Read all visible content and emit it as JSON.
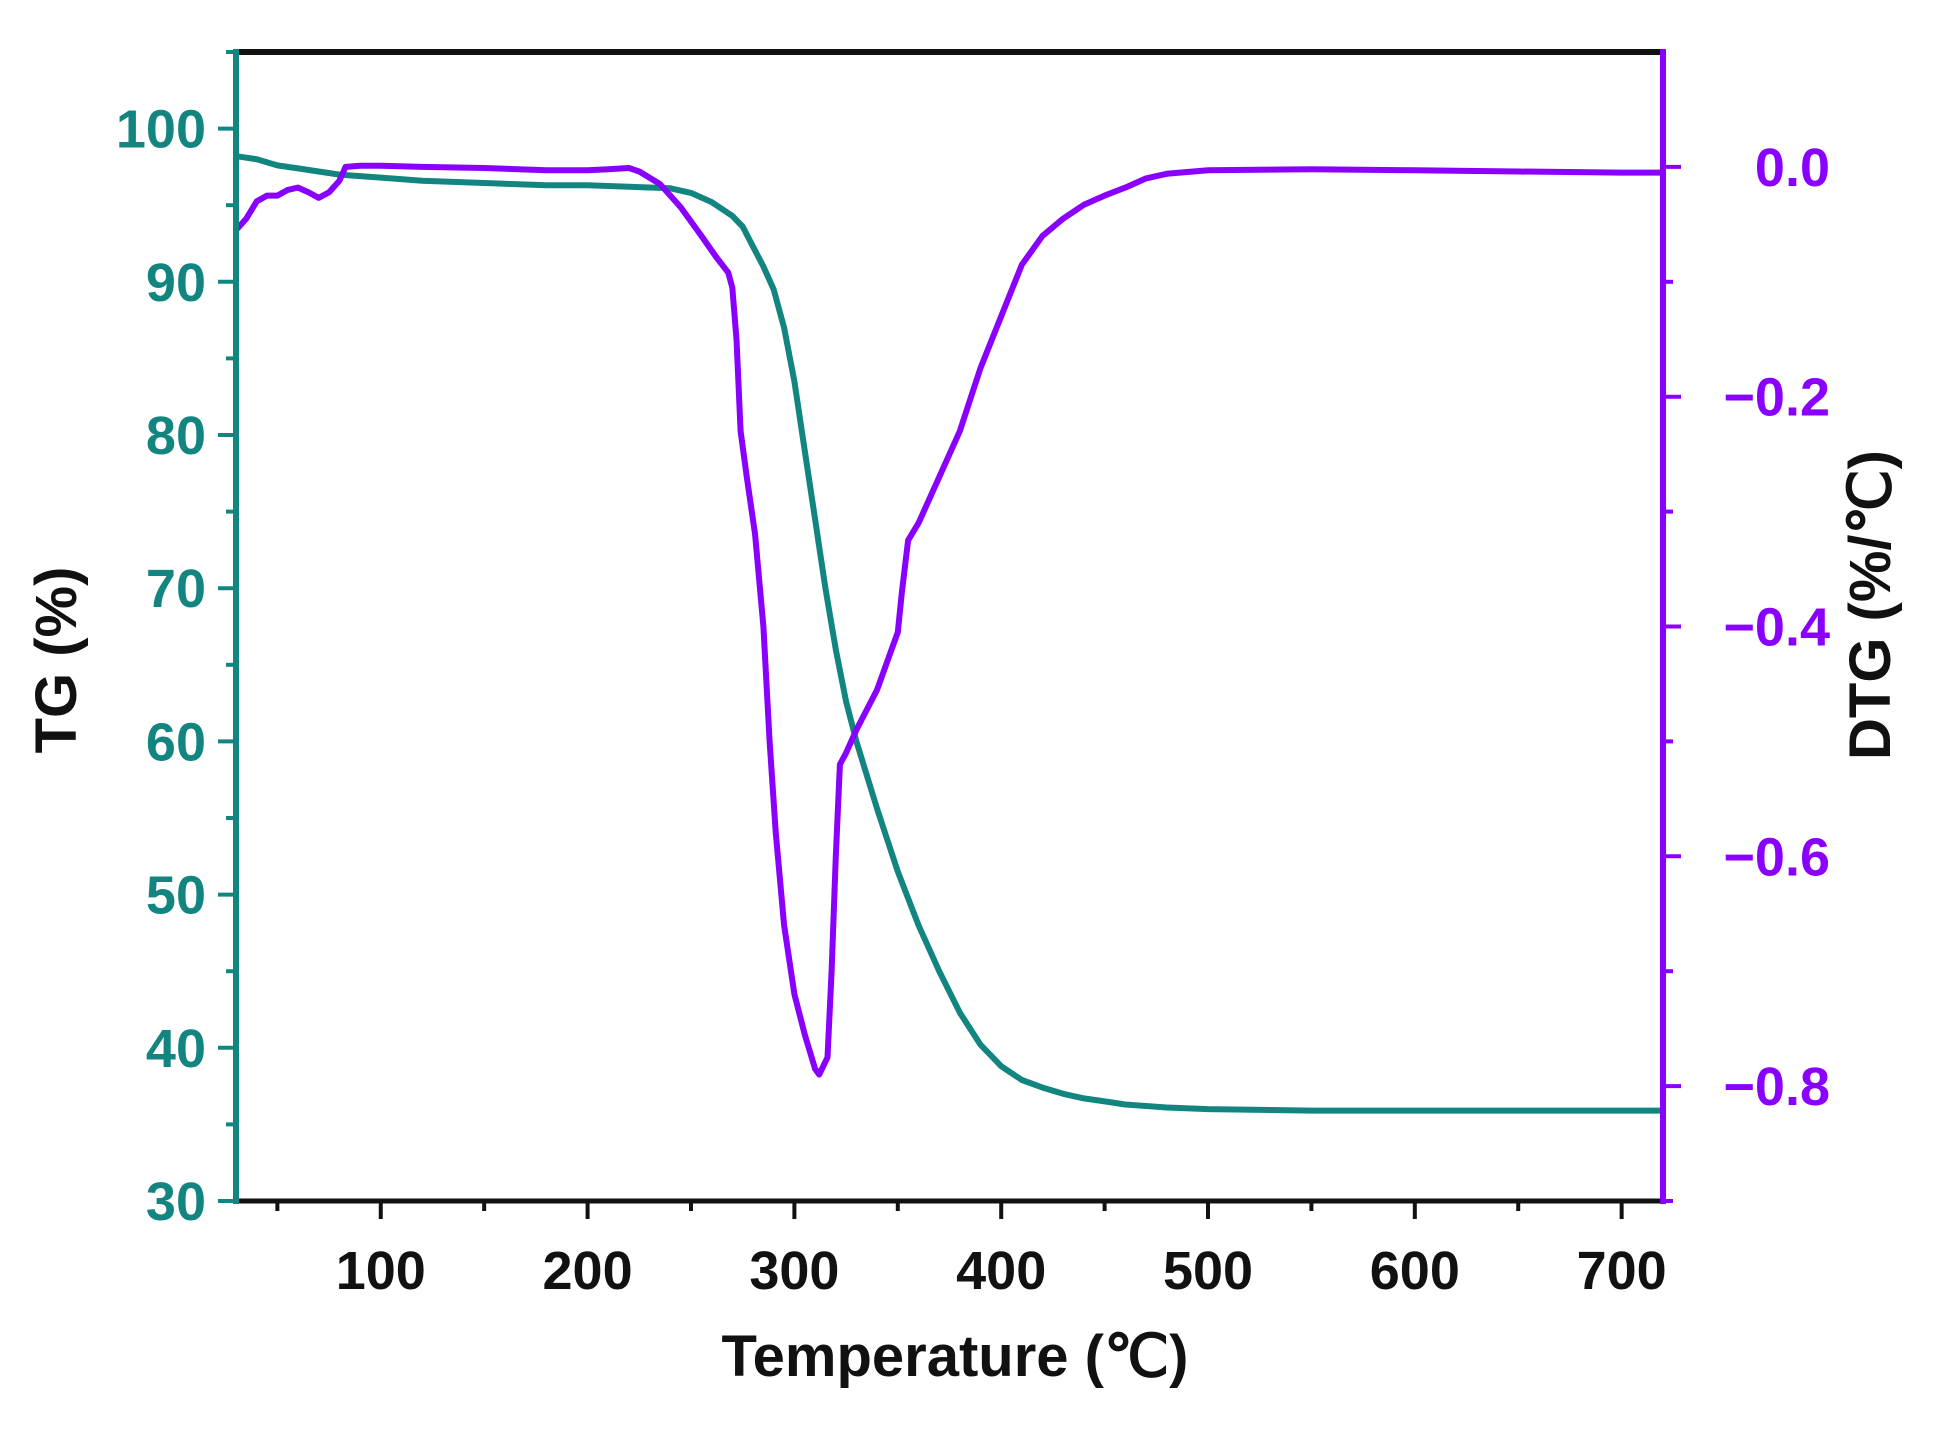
{
  "chart_data": {
    "type": "line",
    "title": "",
    "xlabel": "Temperature (℃)",
    "ylabel_left": "TG (%)",
    "ylabel_right": "DTG (%/℃)",
    "xlim": [
      30,
      720
    ],
    "ylim_left": [
      30,
      105
    ],
    "ylim_right": [
      -0.9,
      0.1
    ],
    "x_ticks": [
      100,
      200,
      300,
      400,
      500,
      600,
      700
    ],
    "x_tick_labels": [
      "100",
      "200",
      "300",
      "400",
      "500",
      "600",
      "700"
    ],
    "y_left_ticks": [
      30,
      40,
      50,
      60,
      70,
      80,
      90,
      100
    ],
    "y_left_tick_labels": [
      "30",
      "40",
      "50",
      "60",
      "70",
      "80",
      "90",
      "100"
    ],
    "y_right_ticks": [
      0.0,
      -0.2,
      -0.4,
      -0.6,
      -0.8
    ],
    "y_right_tick_labels": [
      "0.0",
      "−0.2",
      "−0.4",
      "−0.6",
      "−0.8"
    ],
    "grid": false,
    "colors": {
      "tg": "#138580",
      "dtg": "#8a00ff",
      "frame": "#111111"
    },
    "series": [
      {
        "name": "TG",
        "axis": "left",
        "color": "#138580",
        "points": [
          [
            30,
            98.2
          ],
          [
            40,
            98.0
          ],
          [
            50,
            97.6
          ],
          [
            60,
            97.4
          ],
          [
            70,
            97.2
          ],
          [
            80,
            97.0
          ],
          [
            90,
            96.9
          ],
          [
            100,
            96.8
          ],
          [
            120,
            96.6
          ],
          [
            140,
            96.5
          ],
          [
            160,
            96.4
          ],
          [
            180,
            96.3
          ],
          [
            200,
            96.3
          ],
          [
            220,
            96.2
          ],
          [
            240,
            96.1
          ],
          [
            250,
            95.8
          ],
          [
            260,
            95.2
          ],
          [
            270,
            94.3
          ],
          [
            275,
            93.6
          ],
          [
            280,
            92.3
          ],
          [
            285,
            91.0
          ],
          [
            290,
            89.5
          ],
          [
            295,
            87.0
          ],
          [
            300,
            83.5
          ],
          [
            305,
            79.0
          ],
          [
            310,
            74.5
          ],
          [
            315,
            70.0
          ],
          [
            320,
            66.0
          ],
          [
            325,
            62.6
          ],
          [
            330,
            60.0
          ],
          [
            340,
            55.6
          ],
          [
            350,
            51.5
          ],
          [
            360,
            48.0
          ],
          [
            370,
            45.0
          ],
          [
            380,
            42.3
          ],
          [
            390,
            40.2
          ],
          [
            400,
            38.8
          ],
          [
            410,
            37.9
          ],
          [
            420,
            37.4
          ],
          [
            430,
            37.0
          ],
          [
            440,
            36.7
          ],
          [
            450,
            36.5
          ],
          [
            460,
            36.3
          ],
          [
            480,
            36.1
          ],
          [
            500,
            36.0
          ],
          [
            550,
            35.9
          ],
          [
            600,
            35.9
          ],
          [
            650,
            35.9
          ],
          [
            700,
            35.9
          ],
          [
            720,
            35.9
          ]
        ]
      },
      {
        "name": "DTG",
        "axis": "right",
        "color": "#8a00ff",
        "points": [
          [
            30,
            -0.055
          ],
          [
            35,
            -0.045
          ],
          [
            40,
            -0.03
          ],
          [
            45,
            -0.025
          ],
          [
            50,
            -0.025
          ],
          [
            55,
            -0.02
          ],
          [
            60,
            -0.018
          ],
          [
            65,
            -0.022
          ],
          [
            70,
            -0.027
          ],
          [
            75,
            -0.022
          ],
          [
            80,
            -0.012
          ],
          [
            83,
            0.0
          ],
          [
            90,
            0.001
          ],
          [
            100,
            0.001
          ],
          [
            120,
            0.0
          ],
          [
            150,
            -0.001
          ],
          [
            180,
            -0.003
          ],
          [
            200,
            -0.003
          ],
          [
            210,
            -0.002
          ],
          [
            220,
            -0.001
          ],
          [
            225,
            -0.004
          ],
          [
            235,
            -0.015
          ],
          [
            245,
            -0.035
          ],
          [
            255,
            -0.06
          ],
          [
            262,
            -0.078
          ],
          [
            268,
            -0.092
          ],
          [
            270,
            -0.105
          ],
          [
            272,
            -0.15
          ],
          [
            274,
            -0.23
          ],
          [
            277,
            -0.27
          ],
          [
            281,
            -0.32
          ],
          [
            285,
            -0.4
          ],
          [
            288,
            -0.5
          ],
          [
            291,
            -0.58
          ],
          [
            295,
            -0.66
          ],
          [
            300,
            -0.72
          ],
          [
            305,
            -0.755
          ],
          [
            310,
            -0.785
          ],
          [
            312,
            -0.79
          ],
          [
            316,
            -0.775
          ],
          [
            318,
            -0.7
          ],
          [
            320,
            -0.6
          ],
          [
            322,
            -0.52
          ],
          [
            325,
            -0.51
          ],
          [
            330,
            -0.49
          ],
          [
            340,
            -0.455
          ],
          [
            350,
            -0.405
          ],
          [
            352,
            -0.37
          ],
          [
            355,
            -0.325
          ],
          [
            360,
            -0.31
          ],
          [
            370,
            -0.27
          ],
          [
            380,
            -0.23
          ],
          [
            390,
            -0.175
          ],
          [
            400,
            -0.13
          ],
          [
            410,
            -0.085
          ],
          [
            420,
            -0.06
          ],
          [
            430,
            -0.045
          ],
          [
            440,
            -0.033
          ],
          [
            450,
            -0.025
          ],
          [
            460,
            -0.018
          ],
          [
            470,
            -0.01
          ],
          [
            480,
            -0.006
          ],
          [
            500,
            -0.003
          ],
          [
            550,
            -0.002
          ],
          [
            600,
            -0.003
          ],
          [
            650,
            -0.004
          ],
          [
            700,
            -0.005
          ],
          [
            720,
            -0.005
          ]
        ]
      }
    ]
  }
}
